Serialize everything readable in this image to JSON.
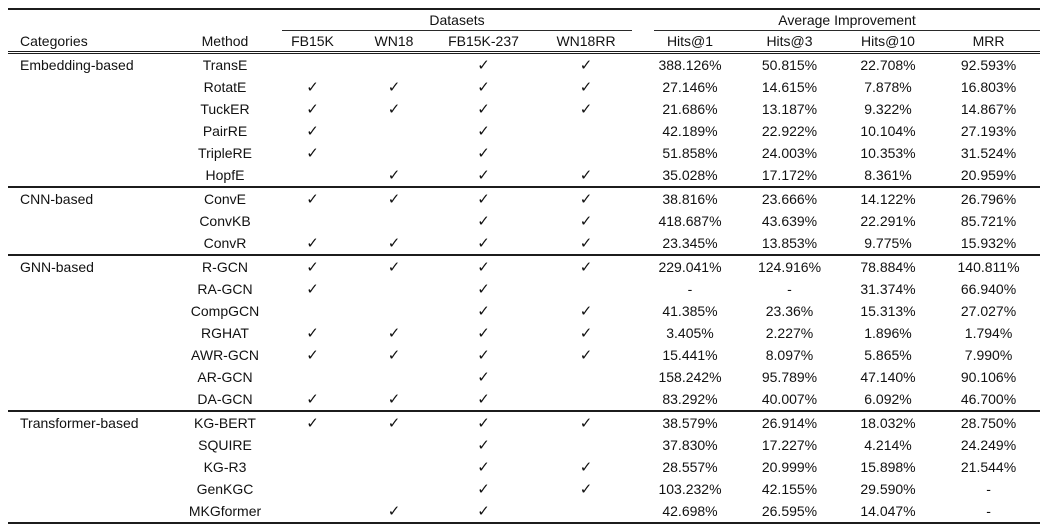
{
  "table": {
    "groups": {
      "datasets": "Datasets",
      "avg_improvement": "Average Improvement"
    },
    "headers": {
      "categories": "Categories",
      "method": "Method",
      "datasets": [
        "FB15K",
        "WN18",
        "FB15K-237",
        "WN18RR"
      ],
      "metrics": [
        "Hits@1",
        "Hits@3",
        "Hits@10",
        "MRR"
      ]
    },
    "checkmark": "✓",
    "sections": [
      {
        "category": "Embedding-based",
        "rows": [
          {
            "method": "TransE",
            "datasets": [
              false,
              false,
              true,
              true
            ],
            "metrics": [
              "388.126%",
              "50.815%",
              "22.708%",
              "92.593%"
            ]
          },
          {
            "method": "RotatE",
            "datasets": [
              true,
              true,
              true,
              true
            ],
            "metrics": [
              "27.146%",
              "14.615%",
              "7.878%",
              "16.803%"
            ]
          },
          {
            "method": "TuckER",
            "datasets": [
              true,
              true,
              true,
              true
            ],
            "metrics": [
              "21.686%",
              "13.187%",
              "9.322%",
              "14.867%"
            ]
          },
          {
            "method": "PairRE",
            "datasets": [
              true,
              false,
              true,
              false
            ],
            "metrics": [
              "42.189%",
              "22.922%",
              "10.104%",
              "27.193%"
            ]
          },
          {
            "method": "TripleRE",
            "datasets": [
              true,
              false,
              true,
              false
            ],
            "metrics": [
              "51.858%",
              "24.003%",
              "10.353%",
              "31.524%"
            ]
          },
          {
            "method": "HopfE",
            "datasets": [
              false,
              true,
              true,
              true
            ],
            "metrics": [
              "35.028%",
              "17.172%",
              "8.361%",
              "20.959%"
            ]
          }
        ]
      },
      {
        "category": "CNN-based",
        "rows": [
          {
            "method": "ConvE",
            "datasets": [
              true,
              true,
              true,
              true
            ],
            "metrics": [
              "38.816%",
              "23.666%",
              "14.122%",
              "26.796%"
            ]
          },
          {
            "method": "ConvKB",
            "datasets": [
              false,
              false,
              true,
              true
            ],
            "metrics": [
              "418.687%",
              "43.639%",
              "22.291%",
              "85.721%"
            ]
          },
          {
            "method": "ConvR",
            "datasets": [
              true,
              true,
              true,
              true
            ],
            "metrics": [
              "23.345%",
              "13.853%",
              "9.775%",
              "15.932%"
            ]
          }
        ]
      },
      {
        "category": "GNN-based",
        "rows": [
          {
            "method": "R-GCN",
            "datasets": [
              true,
              true,
              true,
              true
            ],
            "metrics": [
              "229.041%",
              "124.916%",
              "78.884%",
              "140.811%"
            ]
          },
          {
            "method": "RA-GCN",
            "datasets": [
              true,
              false,
              true,
              false
            ],
            "metrics": [
              "-",
              "-",
              "31.374%",
              "66.940%"
            ]
          },
          {
            "method": "CompGCN",
            "datasets": [
              false,
              false,
              true,
              true
            ],
            "metrics": [
              "41.385%",
              "23.36%",
              "15.313%",
              "27.027%"
            ]
          },
          {
            "method": "RGHAT",
            "datasets": [
              true,
              true,
              true,
              true
            ],
            "metrics": [
              "3.405%",
              "2.227%",
              "1.896%",
              "1.794%"
            ]
          },
          {
            "method": "AWR-GCN",
            "datasets": [
              true,
              true,
              true,
              true
            ],
            "metrics": [
              "15.441%",
              "8.097%",
              "5.865%",
              "7.990%"
            ]
          },
          {
            "method": "AR-GCN",
            "datasets": [
              false,
              false,
              true,
              false
            ],
            "metrics": [
              "158.242%",
              "95.789%",
              "47.140%",
              "90.106%"
            ]
          },
          {
            "method": "DA-GCN",
            "datasets": [
              true,
              true,
              true,
              false
            ],
            "metrics": [
              "83.292%",
              "40.007%",
              "6.092%",
              "46.700%"
            ]
          }
        ]
      },
      {
        "category": "Transformer-based",
        "rows": [
          {
            "method": "KG-BERT",
            "datasets": [
              true,
              true,
              true,
              true
            ],
            "metrics": [
              "38.579%",
              "26.914%",
              "18.032%",
              "28.750%"
            ]
          },
          {
            "method": "SQUIRE",
            "datasets": [
              false,
              false,
              true,
              false
            ],
            "metrics": [
              "37.830%",
              "17.227%",
              "4.214%",
              "24.249%"
            ]
          },
          {
            "method": "KG-R3",
            "datasets": [
              false,
              false,
              true,
              true
            ],
            "metrics": [
              "28.557%",
              "20.999%",
              "15.898%",
              "21.544%"
            ]
          },
          {
            "method": "GenKGC",
            "datasets": [
              false,
              false,
              true,
              true
            ],
            "metrics": [
              "103.232%",
              "42.155%",
              "29.590%",
              "-"
            ]
          },
          {
            "method": "MKGformer",
            "datasets": [
              false,
              true,
              true,
              false
            ],
            "metrics": [
              "42.698%",
              "26.595%",
              "14.047%",
              "-"
            ]
          }
        ]
      }
    ]
  }
}
